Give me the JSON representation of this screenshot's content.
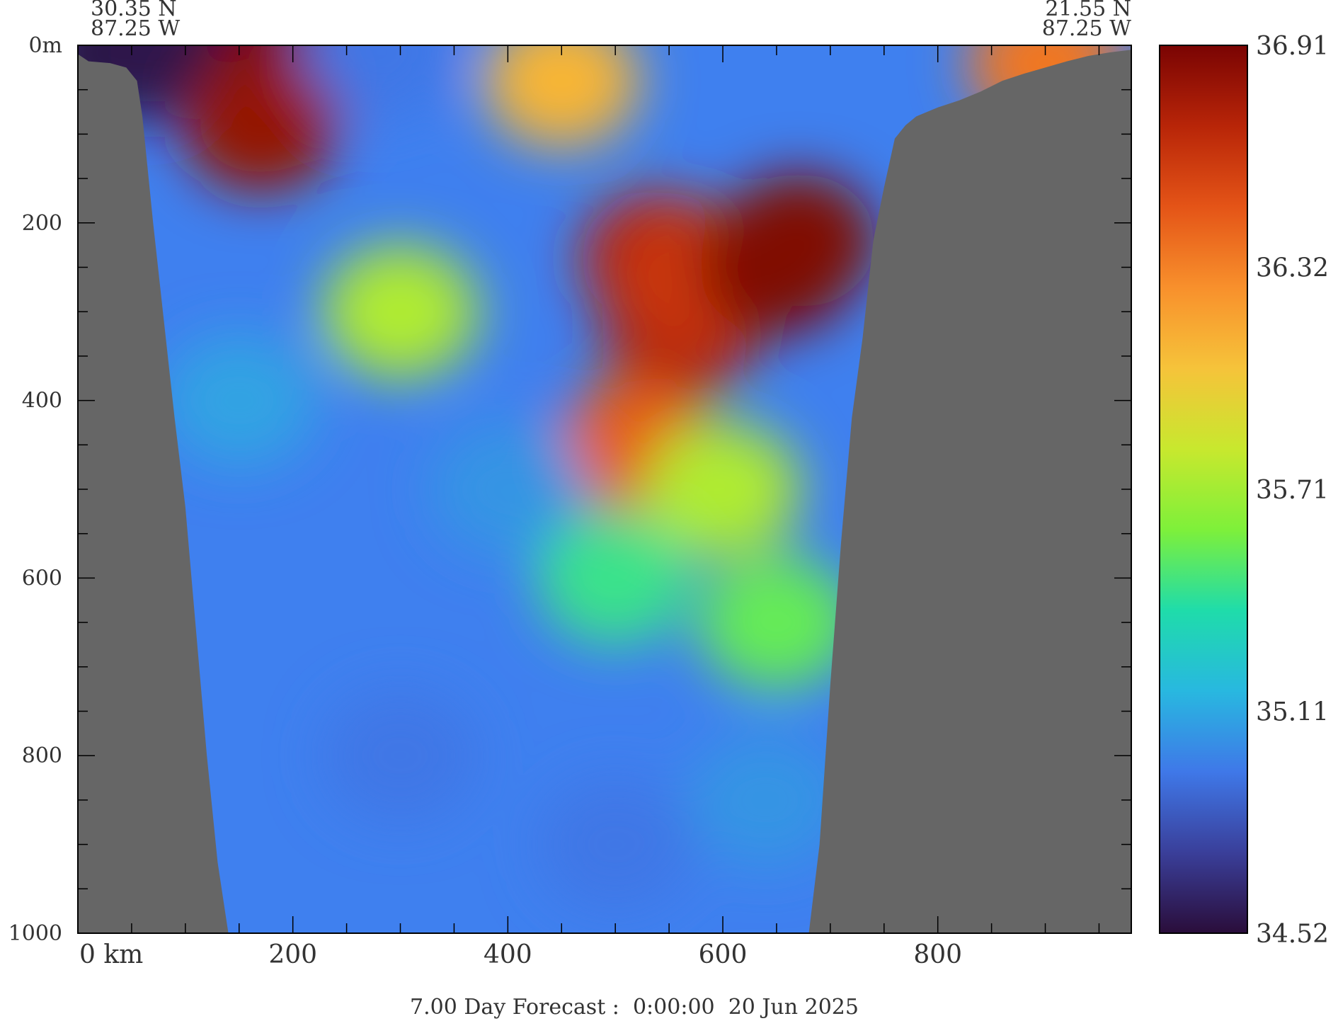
{
  "chart_data": {
    "type": "heatmap",
    "title": "",
    "footer_text": "7.00 Day Forecast :  0:00:00  20 Jun 2025",
    "start_label": {
      "lat": "30.35 N",
      "lon": "87.25 W"
    },
    "end_label": {
      "lat": "21.55 N",
      "lon": "87.25 W"
    },
    "x_axis": {
      "range_km": [
        0,
        980
      ],
      "ticks": [
        0,
        200,
        400,
        600,
        800
      ],
      "tick_labels": [
        "0 km",
        "200",
        "400",
        "600",
        "800"
      ],
      "minor_step": 50
    },
    "y_axis": {
      "range_m": [
        0,
        1000
      ],
      "ticks": [
        0,
        200,
        400,
        600,
        800,
        1000
      ],
      "tick_labels": [
        "0m",
        "200",
        "400",
        "600",
        "800",
        "1000"
      ],
      "minor_step": 50,
      "inverted": true
    },
    "colorbar": {
      "min": 34.52,
      "max": 36.91,
      "labels": [
        "36.91",
        "36.32",
        "35.71",
        "35.11",
        "34.52"
      ],
      "colors": [
        "#2a0d3a",
        "#3a3f9a",
        "#3f78e8",
        "#28b8e0",
        "#1fdcaa",
        "#7ef03a",
        "#c8e82e",
        "#f6c33a",
        "#f8902c",
        "#e45417",
        "#b82508",
        "#7a0403"
      ]
    },
    "land_color": "#666666",
    "bathymetry": {
      "x_km": [
        0,
        10,
        30,
        45,
        55,
        60,
        70,
        80,
        90,
        100,
        110,
        120,
        130,
        140,
        150,
        160,
        170,
        180,
        190,
        200,
        220,
        250,
        300,
        400,
        500,
        550,
        600,
        640,
        660,
        680,
        690,
        700,
        710,
        720,
        730,
        740,
        750,
        760,
        770,
        780,
        800,
        820,
        840,
        860,
        880,
        900,
        920,
        940,
        960,
        980
      ],
      "depth_m": [
        10,
        18,
        20,
        25,
        40,
        80,
        200,
        310,
        420,
        520,
        660,
        800,
        920,
        1000,
        1000,
        1000,
        1000,
        1000,
        1000,
        1000,
        1000,
        1000,
        1000,
        1000,
        1000,
        1000,
        1000,
        1000,
        1000,
        1000,
        900,
        720,
        560,
        420,
        330,
        220,
        160,
        105,
        90,
        80,
        70,
        62,
        52,
        40,
        32,
        25,
        18,
        12,
        8,
        5
      ]
    },
    "salinity_features": [
      {
        "x_km": 30,
        "depth_m": 8,
        "value": 34.52
      },
      {
        "x_km": 60,
        "depth_m": 8,
        "value": 34.55
      },
      {
        "x_km": 100,
        "depth_m": 8,
        "value": 34.56
      },
      {
        "x_km": 135,
        "depth_m": 8,
        "value": 34.56
      },
      {
        "x_km": 200,
        "depth_m": 15,
        "value": 36.91
      },
      {
        "x_km": 230,
        "depth_m": 10,
        "value": 36.91
      },
      {
        "x_km": 280,
        "depth_m": 8,
        "value": 34.95
      },
      {
        "x_km": 170,
        "depth_m": 90,
        "value": 36.82
      },
      {
        "x_km": 450,
        "depth_m": 40,
        "value": 36.1
      },
      {
        "x_km": 540,
        "depth_m": 240,
        "value": 36.7
      },
      {
        "x_km": 560,
        "depth_m": 320,
        "value": 36.72
      },
      {
        "x_km": 580,
        "depth_m": 260,
        "value": 36.6
      },
      {
        "x_km": 650,
        "depth_m": 250,
        "value": 36.91
      },
      {
        "x_km": 670,
        "depth_m": 220,
        "value": 36.89
      },
      {
        "x_km": 520,
        "depth_m": 450,
        "value": 36.45
      },
      {
        "x_km": 300,
        "depth_m": 300,
        "value": 35.75
      },
      {
        "x_km": 150,
        "depth_m": 400,
        "value": 35.1
      },
      {
        "x_km": 400,
        "depth_m": 500,
        "value": 35.05
      },
      {
        "x_km": 500,
        "depth_m": 600,
        "value": 35.45
      },
      {
        "x_km": 600,
        "depth_m": 500,
        "value": 35.75
      },
      {
        "x_km": 650,
        "depth_m": 650,
        "value": 35.55
      },
      {
        "x_km": 300,
        "depth_m": 800,
        "value": 34.95
      },
      {
        "x_km": 500,
        "depth_m": 900,
        "value": 34.95
      },
      {
        "x_km": 640,
        "depth_m": 850,
        "value": 35.05
      },
      {
        "x_km": 900,
        "depth_m": 20,
        "value": 36.35
      }
    ]
  }
}
